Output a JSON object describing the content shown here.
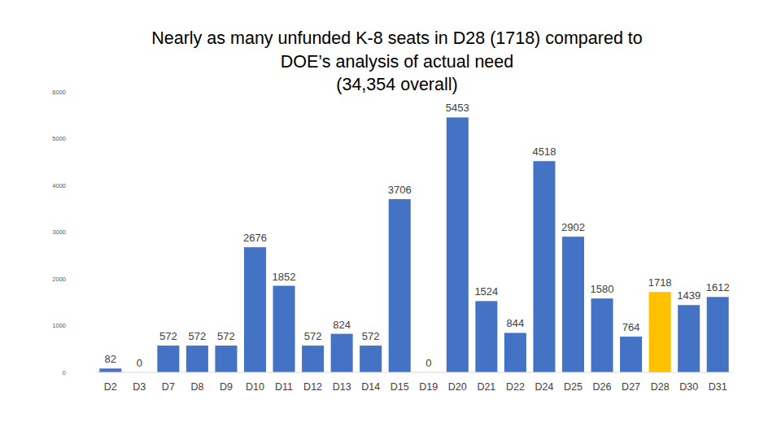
{
  "chart_data": {
    "type": "bar",
    "title": [
      "Nearly as many unfunded K-8 seats in D28 (1718) compared to",
      "DOE’s analysis of actual need",
      "(34,354 overall)"
    ],
    "categories": [
      "D2",
      "D3",
      "D7",
      "D8",
      "D9",
      "D10",
      "D11",
      "D12",
      "D13",
      "D14",
      "D15",
      "D19",
      "D20",
      "D21",
      "D22",
      "D24",
      "D25",
      "D26",
      "D27",
      "D28",
      "D30",
      "D31"
    ],
    "values": [
      82,
      0,
      572,
      572,
      572,
      2676,
      1852,
      572,
      824,
      572,
      3706,
      0,
      5453,
      1524,
      844,
      4518,
      2902,
      1580,
      764,
      1718,
      1439,
      1612
    ],
    "colors": [
      "#4472c4",
      "#4472c4",
      "#4472c4",
      "#4472c4",
      "#4472c4",
      "#4472c4",
      "#4472c4",
      "#4472c4",
      "#4472c4",
      "#4472c4",
      "#4472c4",
      "#4472c4",
      "#4472c4",
      "#4472c4",
      "#4472c4",
      "#4472c4",
      "#4472c4",
      "#4472c4",
      "#4472c4",
      "#ffc000",
      "#4472c4",
      "#4472c4"
    ],
    "ylim": [
      0,
      6000
    ],
    "yticks": [
      0,
      1000,
      2000,
      3000,
      4000,
      5000,
      6000
    ],
    "grid": false,
    "data_labels": true
  }
}
